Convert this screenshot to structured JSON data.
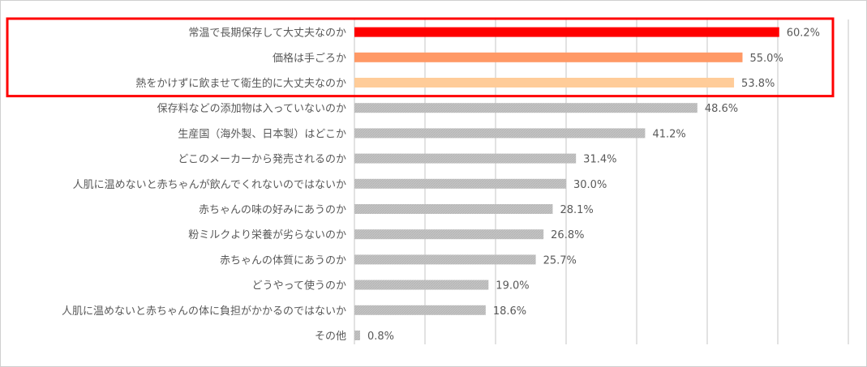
{
  "chart_data": {
    "type": "bar",
    "orientation": "horizontal",
    "categories": [
      "常温で長期保存して大丈夫なのか",
      "価格は手ごろか",
      "熱をかけずに飲ませて衛生的に大丈夫なのか",
      "保存料などの添加物は入っていないのか",
      "生産国（海外製、日本製）はどこか",
      "どこのメーカーから発売されるのか",
      "人肌に温めないと赤ちゃんが飲んでくれないのではないか",
      "赤ちゃんの味の好みにあうのか",
      "粉ミルクより栄養が劣らないのか",
      "赤ちゃんの体質にあうのか",
      "どうやって使うのか",
      "人肌に温めないと赤ちゃんの体に負担がかかるのではないか",
      "その他"
    ],
    "values": [
      60.2,
      55.0,
      53.8,
      48.6,
      41.2,
      31.4,
      30.0,
      28.1,
      26.8,
      25.7,
      19.0,
      18.6,
      0.8
    ],
    "value_labels": [
      "60.2%",
      "55.0%",
      "53.8%",
      "48.6%",
      "41.2%",
      "31.4%",
      "30.0%",
      "28.1%",
      "26.8%",
      "25.7%",
      "19.0%",
      "18.6%",
      "0.8%"
    ],
    "colors": [
      "#ff0000",
      "#ff9966",
      "#ffcc99",
      "#bfbfbf",
      "#bfbfbf",
      "#bfbfbf",
      "#bfbfbf",
      "#bfbfbf",
      "#bfbfbf",
      "#bfbfbf",
      "#bfbfbf",
      "#bfbfbf",
      "#bfbfbf"
    ],
    "xlim": [
      0,
      70
    ],
    "grid_step": 10,
    "grid": true,
    "highlight": {
      "rows": [
        0,
        1,
        2
      ],
      "color": "#ff0000"
    },
    "title": "",
    "xlabel": "",
    "ylabel": ""
  }
}
